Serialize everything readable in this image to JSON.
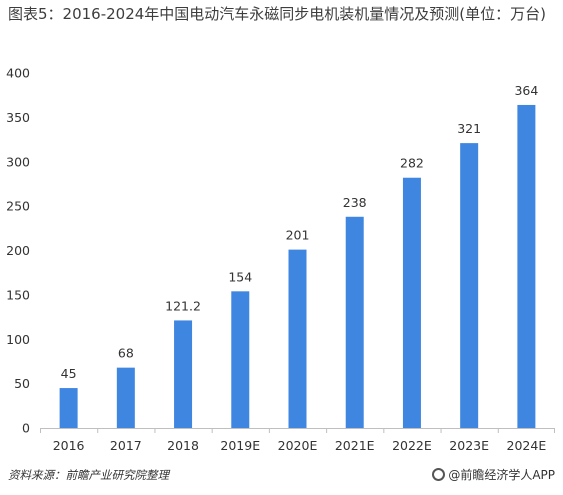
{
  "title": "图表5：2016-2024年中国电动汽车永磁同步电机装机量情况及预测(单位：万台)",
  "footer": {
    "source": "资料来源：前瞻产业研究院整理",
    "brand": "@前瞻经济学人APP"
  },
  "colors": {
    "bar": "#3f86e0",
    "axis": "#bfbfbf",
    "text": "#333333"
  },
  "chart_data": {
    "type": "bar",
    "categories": [
      "2016",
      "2017",
      "2018",
      "2019E",
      "2020E",
      "2021E",
      "2022E",
      "2023E",
      "2024E"
    ],
    "values": [
      45,
      68,
      121.2,
      154,
      201,
      238,
      282,
      321,
      364
    ],
    "value_labels": [
      "45",
      "68",
      "121.2",
      "154",
      "201",
      "238",
      "282",
      "321",
      "364"
    ],
    "ylim": [
      0,
      400
    ],
    "yticks": [
      0,
      50,
      100,
      150,
      200,
      250,
      300,
      350,
      400
    ],
    "grid": false
  }
}
